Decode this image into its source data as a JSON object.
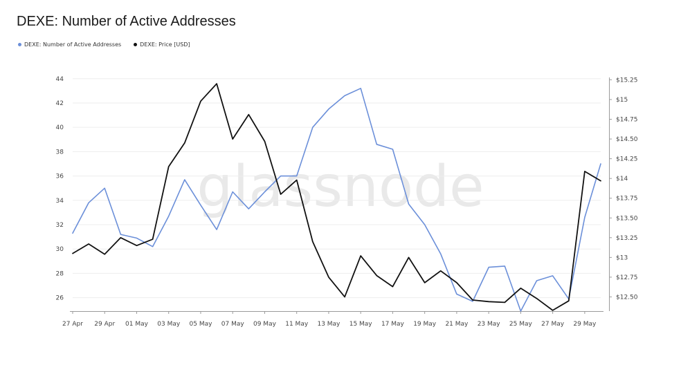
{
  "title": "DEXE: Number of Active Addresses",
  "watermark": "glassnode",
  "colors": {
    "addresses": "#6b8fd9",
    "price": "#111111",
    "grid": "#ededed",
    "axis": "#9a9a9a"
  },
  "legend": [
    {
      "label": "DEXE: Number of Active Addresses",
      "color": "#6b8fd9"
    },
    {
      "label": "DEXE: Price [USD]",
      "color": "#111111"
    }
  ],
  "chart_data": {
    "type": "line",
    "x_tick_labels": [
      "27 Apr",
      "29 Apr",
      "01 May",
      "03 May",
      "05 May",
      "07 May",
      "09 May",
      "11 May",
      "13 May",
      "15 May",
      "17 May",
      "19 May",
      "21 May",
      "23 May",
      "25 May",
      "27 May",
      "29 May"
    ],
    "x": [
      "27 Apr",
      "28 Apr",
      "29 Apr",
      "30 Apr",
      "01 May",
      "02 May",
      "03 May",
      "04 May",
      "05 May",
      "06 May",
      "07 May",
      "08 May",
      "09 May",
      "10 May",
      "11 May",
      "12 May",
      "13 May",
      "14 May",
      "15 May",
      "16 May",
      "17 May",
      "18 May",
      "19 May",
      "20 May",
      "21 May",
      "22 May",
      "23 May",
      "24 May",
      "25 May",
      "26 May",
      "27 May",
      "28 May",
      "29 May",
      "30 May"
    ],
    "y_left": {
      "ticks": [
        "26",
        "28",
        "30",
        "32",
        "34",
        "36",
        "38",
        "40",
        "42",
        "44"
      ],
      "ylim": [
        24.9,
        44.1
      ]
    },
    "y_right": {
      "ticks": [
        "$12.50",
        "$12.75",
        "$13",
        "$13.25",
        "$13.50",
        "$13.75",
        "$14",
        "$14.25",
        "$14.50",
        "$14.75",
        "$15",
        "$15.25"
      ],
      "ylim": [
        12.32,
        15.28
      ]
    },
    "series": [
      {
        "name": "DEXE: Number of Active Addresses",
        "axis": "left",
        "values": [
          31.3,
          33.8,
          35.0,
          31.2,
          30.9,
          30.2,
          32.7,
          35.7,
          33.6,
          31.6,
          34.7,
          33.3,
          34.7,
          36.0,
          36.0,
          40.0,
          41.5,
          42.6,
          43.2,
          38.6,
          38.2,
          33.7,
          32.0,
          29.6,
          26.3,
          25.7,
          28.5,
          28.6,
          24.9,
          27.4,
          27.8,
          25.9,
          32.6,
          37.0
        ]
      },
      {
        "name": "DEXE: Price [USD]",
        "axis": "right",
        "values": [
          13.05,
          13.17,
          13.04,
          13.25,
          13.15,
          13.23,
          14.15,
          14.45,
          14.98,
          15.2,
          14.5,
          14.81,
          14.47,
          13.8,
          13.98,
          13.2,
          12.75,
          12.5,
          13.02,
          12.77,
          12.63,
          13.0,
          12.68,
          12.83,
          12.68,
          12.46,
          12.44,
          12.43,
          12.61,
          12.48,
          12.33,
          12.45,
          14.09,
          13.97
        ]
      }
    ]
  }
}
